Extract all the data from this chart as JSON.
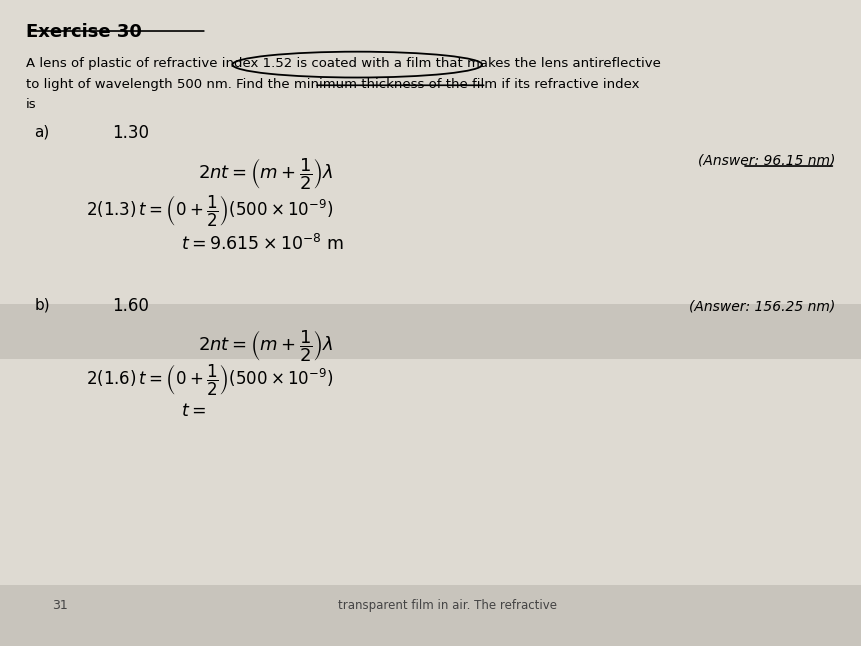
{
  "bg_color": "#d0ccc4",
  "page_bg": "#dedad2",
  "title": "Exercise 30",
  "problem_text_line1": "A lens of plastic of refractive index 1.52 is coated with a film that makes the lens antireflective",
  "problem_text_line2": "to light of wavelength 500 nm. Find the minimum thickness of the film if its refractive index",
  "problem_text_line3": "is",
  "part_a_label": "a)",
  "part_a_n": "1.30",
  "part_a_eq1": "$2nt = \\left(m+\\dfrac{1}{2}\\right)\\lambda$",
  "part_a_eq2": "$2(1.3)\\,t = \\left(0+\\dfrac{1}{2}\\right)(500\\times10^{-9})$",
  "part_a_eq3": "$t = 9.615\\times10^{-8}\\ \\mathrm{m}$",
  "part_a_answer": "(Answer: 96.15 nm)",
  "part_b_label": "b)",
  "part_b_n": "1.60",
  "part_b_eq1": "$2nt = \\left(m+\\dfrac{1}{2}\\right)\\lambda$",
  "part_b_eq2": "$2(1.6)\\,t = \\left(0+\\dfrac{1}{2}\\right)(500\\times10^{-9})$",
  "part_b_eq3": "$t =$",
  "part_b_answer": "(Answer: 156.25 nm)",
  "footer_text": "transparent film in air. The refractive",
  "footer_page": "31"
}
